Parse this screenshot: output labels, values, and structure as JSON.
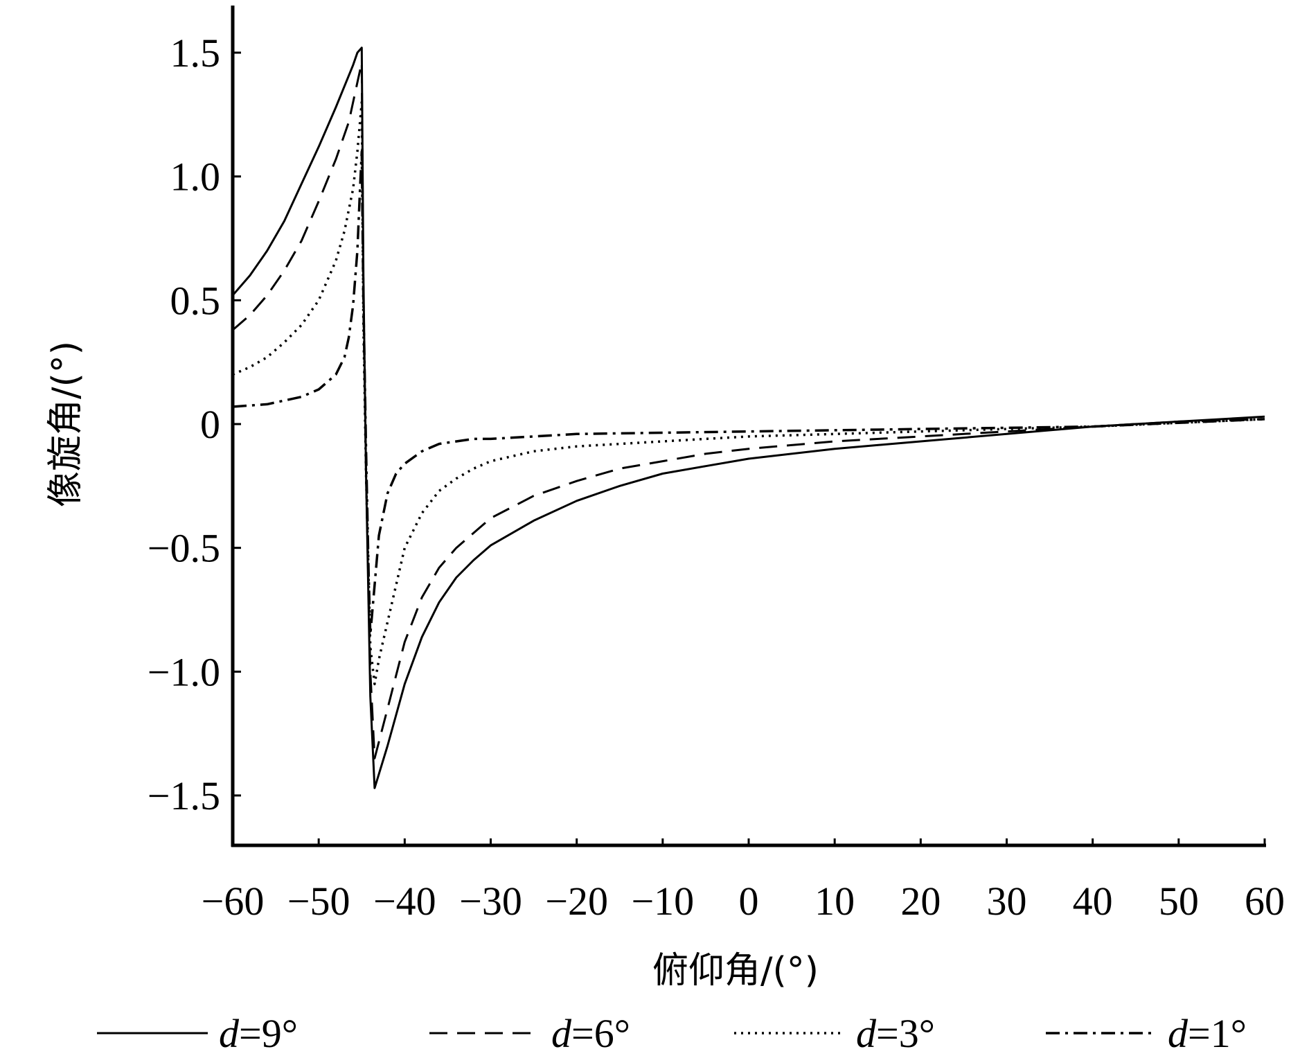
{
  "chart_data": {
    "type": "line",
    "title": "",
    "xlabel": "俯仰角/(°)",
    "ylabel": "像旋角/(°)",
    "xlim": [
      -60,
      60
    ],
    "ylim": [
      -1.7,
      1.7
    ],
    "x_ticks": [
      -60,
      -50,
      -40,
      -30,
      -20,
      -10,
      0,
      10,
      20,
      30,
      40,
      50,
      60
    ],
    "x_tick_labels": [
      "−60",
      "−50",
      "−40",
      "−30",
      "−20",
      "−10",
      "0",
      "10",
      "20",
      "30",
      "40",
      "50",
      "60"
    ],
    "y_ticks": [
      1.5,
      1.0,
      0.5,
      0,
      -0.5,
      -1.0,
      -1.5
    ],
    "y_tick_labels": [
      "1.5",
      "1.0",
      "0.5",
      "0",
      "−0.5",
      "−1.0",
      "−1.5"
    ],
    "grid": false,
    "legend_position": "bottom",
    "series": [
      {
        "name": "d=9°",
        "legend_var": "d",
        "legend_rest": "=9°",
        "style": "solid",
        "color": "#000000",
        "x": [
          -60,
          -58,
          -56,
          -54,
          -52,
          -50,
          -48,
          -46,
          -45.5,
          -45,
          -44.8,
          -44.5,
          -44,
          -43.5,
          -42,
          -40,
          -38,
          -36,
          -34,
          -32,
          -30,
          -25,
          -20,
          -15,
          -10,
          -5,
          0,
          10,
          20,
          30,
          40,
          50,
          60
        ],
        "y": [
          0.52,
          0.6,
          0.7,
          0.82,
          0.97,
          1.12,
          1.28,
          1.45,
          1.5,
          1.52,
          0.6,
          -0.2,
          -1.1,
          -1.47,
          -1.3,
          -1.05,
          -0.86,
          -0.72,
          -0.62,
          -0.55,
          -0.49,
          -0.39,
          -0.31,
          -0.25,
          -0.2,
          -0.17,
          -0.14,
          -0.1,
          -0.07,
          -0.04,
          -0.01,
          0.01,
          0.03
        ]
      },
      {
        "name": "d=6°",
        "legend_var": "d",
        "legend_rest": "=6°",
        "style": "dashed",
        "color": "#000000",
        "x": [
          -60,
          -58,
          -56,
          -54,
          -52,
          -50,
          -48,
          -46.5,
          -45.5,
          -45,
          -44.8,
          -44.5,
          -44,
          -43.5,
          -42,
          -40,
          -38,
          -36,
          -34,
          -32,
          -30,
          -25,
          -20,
          -15,
          -10,
          -5,
          0,
          10,
          20,
          30,
          40,
          50,
          60
        ],
        "y": [
          0.38,
          0.44,
          0.52,
          0.62,
          0.74,
          0.9,
          1.07,
          1.22,
          1.38,
          1.46,
          0.5,
          -0.2,
          -1.0,
          -1.35,
          -1.15,
          -0.88,
          -0.7,
          -0.58,
          -0.5,
          -0.44,
          -0.38,
          -0.29,
          -0.23,
          -0.18,
          -0.15,
          -0.12,
          -0.1,
          -0.07,
          -0.05,
          -0.03,
          -0.01,
          0.01,
          0.02
        ]
      },
      {
        "name": "d=3°",
        "legend_var": "d",
        "legend_rest": "=3°",
        "style": "dotted",
        "color": "#000000",
        "x": [
          -60,
          -58,
          -56,
          -54,
          -52,
          -50,
          -48,
          -47,
          -46,
          -45.5,
          -45,
          -44.8,
          -44.5,
          -44,
          -43.5,
          -43,
          -42,
          -40,
          -38,
          -36,
          -34,
          -32,
          -30,
          -25,
          -20,
          -15,
          -10,
          -5,
          0,
          10,
          20,
          30,
          40,
          50,
          60
        ],
        "y": [
          0.2,
          0.23,
          0.27,
          0.33,
          0.4,
          0.5,
          0.66,
          0.78,
          0.95,
          1.1,
          1.3,
          0.4,
          -0.2,
          -0.9,
          -1.05,
          -0.95,
          -0.8,
          -0.5,
          -0.36,
          -0.27,
          -0.22,
          -0.18,
          -0.15,
          -0.11,
          -0.09,
          -0.08,
          -0.07,
          -0.06,
          -0.05,
          -0.04,
          -0.03,
          -0.02,
          -0.01,
          0.005,
          0.02
        ]
      },
      {
        "name": "d=1°",
        "legend_var": "d",
        "legend_rest": "=1°",
        "style": "dashdot",
        "color": "#000000",
        "x": [
          -60,
          -56,
          -52,
          -50,
          -48,
          -47,
          -46.5,
          -46,
          -45.5,
          -45.2,
          -45,
          -44.8,
          -44.5,
          -44.2,
          -44,
          -43.5,
          -43,
          -42,
          -41,
          -40,
          -38,
          -36,
          -34,
          -32,
          -30,
          -25,
          -20,
          -10,
          0,
          10,
          20,
          30,
          40,
          50,
          60
        ],
        "y": [
          0.07,
          0.08,
          0.11,
          0.14,
          0.2,
          0.27,
          0.35,
          0.48,
          0.7,
          0.95,
          1.1,
          0.5,
          -0.1,
          -0.6,
          -0.85,
          -0.65,
          -0.45,
          -0.28,
          -0.2,
          -0.16,
          -0.11,
          -0.08,
          -0.07,
          -0.06,
          -0.06,
          -0.05,
          -0.04,
          -0.035,
          -0.03,
          -0.025,
          -0.02,
          -0.015,
          -0.01,
          0.005,
          0.02
        ]
      }
    ]
  }
}
